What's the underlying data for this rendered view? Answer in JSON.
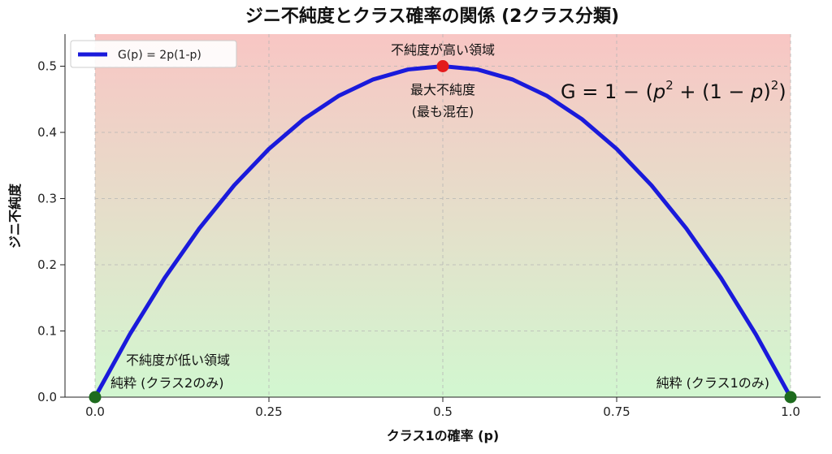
{
  "chart_data": {
    "type": "line",
    "title": "ジニ不純度とクラス確率の関係 (2クラス分類)",
    "xlabel": "クラス1の確率 (p)",
    "ylabel": "ジニ不純度",
    "xlim": [
      0.0,
      1.0
    ],
    "ylim": [
      0.0,
      0.55
    ],
    "x_ticks": [
      0.0,
      0.25,
      0.5,
      0.75,
      1.0
    ],
    "x_tick_labels": [
      "0.0",
      "0.25",
      "0.5",
      "0.75",
      "1.0"
    ],
    "y_ticks": [
      0.0,
      0.1,
      0.2,
      0.3,
      0.4,
      0.5
    ],
    "y_tick_labels": [
      "0.0",
      "0.1",
      "0.2",
      "0.3",
      "0.4",
      "0.5"
    ],
    "grid": true,
    "legend_position": "top-left",
    "series": [
      {
        "name": "G(p) = 2p(1-p)",
        "color": "#1a1adb",
        "x": [
          0.0,
          0.05,
          0.1,
          0.15,
          0.2,
          0.25,
          0.3,
          0.35,
          0.4,
          0.45,
          0.5,
          0.55,
          0.6,
          0.65,
          0.7,
          0.75,
          0.8,
          0.85,
          0.9,
          0.95,
          1.0
        ],
        "y": [
          0.0,
          0.095,
          0.18,
          0.255,
          0.32,
          0.375,
          0.42,
          0.455,
          0.48,
          0.495,
          0.5,
          0.495,
          0.48,
          0.455,
          0.42,
          0.375,
          0.32,
          0.255,
          0.18,
          0.095,
          0.0
        ]
      }
    ],
    "highlight_points": [
      {
        "x": 0.5,
        "y": 0.5,
        "color": "#e31a1c"
      },
      {
        "x": 0.0,
        "y": 0.0,
        "color": "#1e6b1e"
      },
      {
        "x": 1.0,
        "y": 0.0,
        "color": "#1e6b1e"
      }
    ],
    "background_gradient": {
      "top_color": "#f8c6c4",
      "bottom_color": "#d2f7d0"
    },
    "annotations": {
      "high_region": "不純度が高い領域",
      "max_line1": "最大不純度",
      "max_line2": "(最も混在)",
      "low_region": "不純度が低い領域",
      "pure_class2": "純粋 (クラス2のみ)",
      "pure_class1": "純粋 (クラス1のみ)"
    },
    "formula": {
      "lhs": "G = 1 − (",
      "p": "p",
      "sq": "2",
      "mid": " + (1 − ",
      "close": ")",
      "end": ")"
    }
  }
}
